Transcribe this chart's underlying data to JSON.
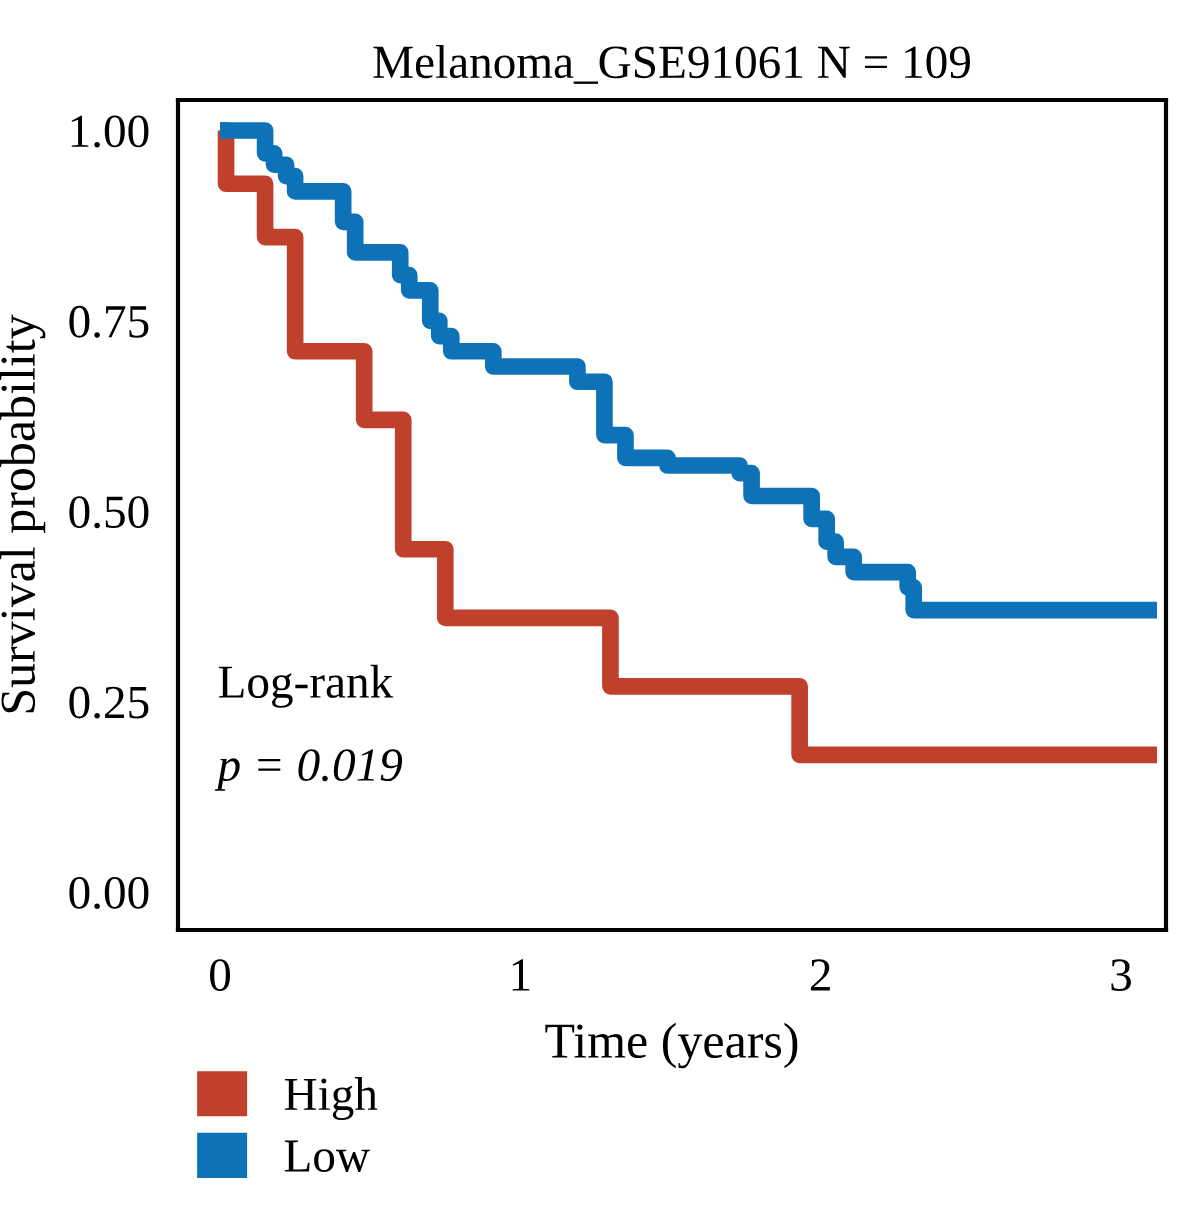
{
  "chart_data": {
    "type": "step",
    "title": "Melanoma_GSE91061 N = 109",
    "xlabel": "Time (years)",
    "ylabel": "Survival probability",
    "series": [
      {
        "name": "High",
        "color": "#c0412b",
        "x": [
          0,
          0.02,
          0.15,
          0.25,
          0.48,
          0.61,
          0.75,
          1.3,
          1.93,
          3.12
        ],
        "values": [
          1.0,
          0.93,
          0.86,
          0.71,
          0.62,
          0.45,
          0.36,
          0.27,
          0.18,
          0.18
        ]
      },
      {
        "name": "Low",
        "color": "#0e72b8",
        "x": [
          0,
          0.15,
          0.18,
          0.22,
          0.25,
          0.41,
          0.45,
          0.6,
          0.63,
          0.7,
          0.73,
          0.77,
          0.91,
          1.19,
          1.28,
          1.35,
          1.49,
          1.73,
          1.77,
          1.97,
          2.02,
          2.05,
          2.11,
          2.29,
          2.31,
          3.12
        ],
        "values": [
          1.0,
          0.97,
          0.955,
          0.94,
          0.92,
          0.88,
          0.84,
          0.81,
          0.79,
          0.75,
          0.73,
          0.71,
          0.69,
          0.67,
          0.6,
          0.57,
          0.56,
          0.55,
          0.52,
          0.49,
          0.46,
          0.44,
          0.42,
          0.4,
          0.37,
          0.37
        ]
      }
    ],
    "annotations": [
      "Log-rank",
      "p = 0.019"
    ],
    "xlim": [
      -0.14,
      3.15
    ],
    "ylim": [
      -0.05,
      1.04
    ],
    "xticks": [
      0,
      1,
      2,
      3
    ],
    "yticks": [
      {
        "value": 0,
        "label": "0.00"
      },
      {
        "value": 0.25,
        "label": "0.25"
      },
      {
        "value": 0.5,
        "label": "0.50"
      },
      {
        "value": 0.75,
        "label": "0.75"
      },
      {
        "value": 1.0,
        "label": "1.00"
      }
    ],
    "grid": false,
    "legend": "bottom left",
    "line_style": "solid"
  }
}
